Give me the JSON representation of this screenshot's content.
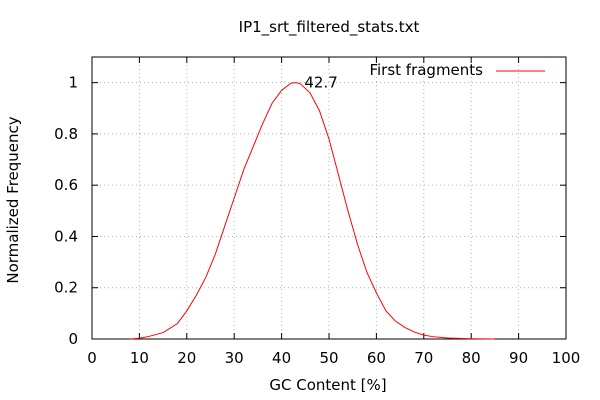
{
  "chart_data": {
    "type": "line",
    "title": "IP1_srt_filtered_stats.txt",
    "xlabel": "GC Content [%]",
    "ylabel": "Normalized Frequency",
    "xlim": [
      0,
      100
    ],
    "ylim": [
      0,
      1.1
    ],
    "xticks": [
      0,
      10,
      20,
      30,
      40,
      50,
      60,
      70,
      80,
      90,
      100
    ],
    "yticks": [
      0,
      0.2,
      0.4,
      0.6,
      0.8,
      1
    ],
    "xtick_labels": [
      "0",
      "10",
      "20",
      "30",
      "40",
      "50",
      "60",
      "70",
      "80",
      "90",
      "100"
    ],
    "ytick_labels": [
      "0",
      "0.2",
      "0.4",
      "0.6",
      "0.8",
      "1"
    ],
    "grid": true,
    "legend_position": "top-right",
    "series": [
      {
        "name": "First fragments",
        "color": "#ff0000",
        "x": [
          8,
          10,
          12,
          15,
          18,
          20,
          22,
          24,
          26,
          28,
          30,
          32,
          34,
          36,
          38,
          40,
          42,
          43,
          44,
          46,
          48,
          50,
          52,
          54,
          56,
          58,
          60,
          62,
          64,
          66,
          68,
          70,
          72,
          75,
          80,
          85
        ],
        "y": [
          0.0,
          0.003,
          0.01,
          0.025,
          0.06,
          0.11,
          0.17,
          0.24,
          0.33,
          0.44,
          0.55,
          0.66,
          0.75,
          0.84,
          0.92,
          0.97,
          0.998,
          1.0,
          0.995,
          0.96,
          0.89,
          0.78,
          0.64,
          0.5,
          0.37,
          0.26,
          0.18,
          0.11,
          0.07,
          0.045,
          0.027,
          0.015,
          0.009,
          0.004,
          0.001,
          0.0
        ]
      }
    ],
    "annotations": [
      {
        "text": "42.7",
        "x": 42.7,
        "y": 1.0
      }
    ]
  }
}
